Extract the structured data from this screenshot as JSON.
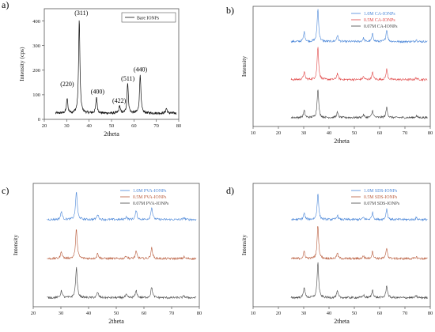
{
  "chart_data": [
    {
      "type": "line",
      "panel": "a)",
      "xlabel": "2theta",
      "ylabel": "Intensity (cps)",
      "xlim": [
        20,
        80
      ],
      "ylim": [
        0,
        450
      ],
      "xticks": [
        20,
        30,
        40,
        50,
        60,
        70,
        80
      ],
      "yticks": [
        0,
        100,
        200,
        300,
        400
      ],
      "legend_position": "top-right",
      "series": [
        {
          "name": "Bare IONPs",
          "color": "#111111",
          "peaks": [
            [
              30.2,
              60
            ],
            [
              35.6,
              380
            ],
            [
              43.3,
              65
            ],
            [
              53.6,
              30
            ],
            [
              57.2,
              125
            ],
            [
              62.8,
              160
            ],
            [
              74.5,
              20
            ]
          ],
          "baseline": 25
        }
      ],
      "annotations": [
        {
          "text": "(220)",
          "x": 30.2,
          "y": 135
        },
        {
          "text": "(311)",
          "x": 36.5,
          "y": 425
        },
        {
          "text": "(400)",
          "x": 43.8,
          "y": 105
        },
        {
          "text": "(422)",
          "x": 53.4,
          "y": 68
        },
        {
          "text": "(511)",
          "x": 57.3,
          "y": 158
        },
        {
          "text": "(440)",
          "x": 62.9,
          "y": 195
        }
      ]
    },
    {
      "type": "line",
      "panel": "b)",
      "xlabel": "2theta",
      "ylabel": "Intensity",
      "xlim": [
        10,
        80
      ],
      "xticks": [
        10,
        20,
        30,
        40,
        50,
        60,
        70,
        80
      ],
      "legend_position": "top-right",
      "series": [
        {
          "name": "1.0M CA-IONPs",
          "color": "#4a86d8",
          "offset": 2.2,
          "peaks": [
            [
              30.2,
              0.28
            ],
            [
              35.6,
              0.95
            ],
            [
              43.3,
              0.18
            ],
            [
              53.6,
              0.1
            ],
            [
              57.2,
              0.22
            ],
            [
              62.8,
              0.35
            ],
            [
              74.5,
              0.05
            ]
          ]
        },
        {
          "name": "0.5M CA-IONPs",
          "color": "#e04545",
          "offset": 1.1,
          "peaks": [
            [
              30.2,
              0.22
            ],
            [
              35.6,
              0.95
            ],
            [
              43.3,
              0.18
            ],
            [
              53.6,
              0.08
            ],
            [
              57.2,
              0.2
            ],
            [
              62.8,
              0.3
            ],
            [
              74.5,
              0.05
            ]
          ]
        },
        {
          "name": "0.07M CA-IONPs",
          "color": "#444444",
          "offset": 0.0,
          "peaks": [
            [
              30.2,
              0.2
            ],
            [
              35.6,
              0.85
            ],
            [
              43.3,
              0.15
            ],
            [
              53.6,
              0.08
            ],
            [
              57.2,
              0.2
            ],
            [
              62.8,
              0.3
            ],
            [
              74.5,
              0.05
            ]
          ]
        }
      ]
    },
    {
      "type": "line",
      "panel": "c)",
      "xlabel": "2theta",
      "ylabel": "Intensity",
      "xlim": [
        20,
        80
      ],
      "xticks": [
        20,
        30,
        40,
        50,
        60,
        70,
        80
      ],
      "legend_position": "top-right",
      "series": [
        {
          "name": "1.0M PVA-IONPs",
          "color": "#4a86d8",
          "offset": 2.2,
          "peaks": [
            [
              30.2,
              0.22
            ],
            [
              35.6,
              0.8
            ],
            [
              43.3,
              0.15
            ],
            [
              53.6,
              0.08
            ],
            [
              57.2,
              0.25
            ],
            [
              62.8,
              0.35
            ],
            [
              74.5,
              0.05
            ]
          ]
        },
        {
          "name": "0.5M PVA-IONPs",
          "color": "#b85a3a",
          "offset": 1.1,
          "peaks": [
            [
              30.2,
              0.2
            ],
            [
              35.6,
              0.85
            ],
            [
              43.3,
              0.15
            ],
            [
              53.6,
              0.08
            ],
            [
              57.2,
              0.2
            ],
            [
              62.8,
              0.3
            ],
            [
              74.5,
              0.05
            ]
          ]
        },
        {
          "name": "0.07M PVA-IONPs",
          "color": "#444444",
          "offset": 0.0,
          "peaks": [
            [
              30.2,
              0.2
            ],
            [
              35.6,
              0.85
            ],
            [
              43.3,
              0.15
            ],
            [
              53.6,
              0.08
            ],
            [
              57.2,
              0.2
            ],
            [
              62.8,
              0.3
            ],
            [
              74.5,
              0.05
            ]
          ]
        }
      ]
    },
    {
      "type": "line",
      "panel": "d)",
      "xlabel": "2theta",
      "ylabel": "Intensity",
      "xlim": [
        10,
        80
      ],
      "xticks": [
        10,
        20,
        30,
        40,
        50,
        60,
        70,
        80
      ],
      "legend_position": "top-right",
      "series": [
        {
          "name": "1.0M SDS-IONPs",
          "color": "#4a86d8",
          "offset": 2.2,
          "peaks": [
            [
              30.2,
              0.18
            ],
            [
              35.6,
              0.75
            ],
            [
              43.3,
              0.12
            ],
            [
              53.6,
              0.06
            ],
            [
              57.2,
              0.2
            ],
            [
              62.8,
              0.3
            ],
            [
              74.5,
              0.05
            ]
          ]
        },
        {
          "name": "0.5M SDS-IONPs",
          "color": "#b85a3a",
          "offset": 1.1,
          "peaks": [
            [
              30.2,
              0.2
            ],
            [
              35.6,
              0.95
            ],
            [
              43.3,
              0.15
            ],
            [
              53.6,
              0.08
            ],
            [
              57.2,
              0.2
            ],
            [
              62.8,
              0.3
            ],
            [
              74.5,
              0.05
            ]
          ]
        },
        {
          "name": "0.07M SDS-IONPs",
          "color": "#444444",
          "offset": 0.0,
          "peaks": [
            [
              30.2,
              0.3
            ],
            [
              35.6,
              1.0
            ],
            [
              43.3,
              0.18
            ],
            [
              53.6,
              0.08
            ],
            [
              57.2,
              0.22
            ],
            [
              62.8,
              0.35
            ],
            [
              74.5,
              0.05
            ]
          ]
        }
      ]
    }
  ]
}
